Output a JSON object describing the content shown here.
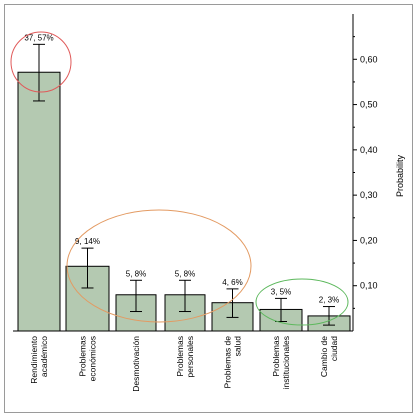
{
  "chart_data": {
    "type": "bar",
    "categories": [
      [
        "Rendimiento",
        "académico"
      ],
      [
        "Problemas",
        "económicos"
      ],
      [
        "Desmotivación"
      ],
      [
        "Problemas",
        "personales"
      ],
      [
        "Problemas de",
        "salud"
      ],
      [
        "Problemas",
        "institucionales"
      ],
      [
        "Cambio de",
        "ciudad"
      ]
    ],
    "values": [
      0.5714,
      0.1429,
      0.08,
      0.08,
      0.0625,
      0.0476,
      0.0333
    ],
    "error_low": [
      0.508,
      0.095,
      0.043,
      0.043,
      0.03,
      0.021,
      0.013
    ],
    "error_high": [
      0.633,
      0.183,
      0.112,
      0.112,
      0.093,
      0.072,
      0.054
    ],
    "data_labels": [
      "37, 57%",
      "9, 14%",
      "5, 8%",
      "5, 8%",
      "4, 6%",
      "3, 5%",
      "2, 3%"
    ],
    "ylabel": "Probability",
    "ylim": [
      0,
      0.7
    ],
    "yticks": [
      0.1,
      0.2,
      0.3,
      0.4,
      0.5,
      0.6
    ],
    "ytick_labels": [
      "0,10",
      "0,20",
      "0,30",
      "0,40",
      "0,50",
      "0,60"
    ],
    "y_axis_side": "right",
    "grid": false,
    "legend": "none",
    "colors": {
      "bar_fill": "#b4c9b1",
      "bar_stroke": "#000000",
      "error_bar": "#000000",
      "highlight_red": "#e05a5a",
      "highlight_orange": "#e39a62",
      "highlight_green": "#5cb85c"
    }
  }
}
